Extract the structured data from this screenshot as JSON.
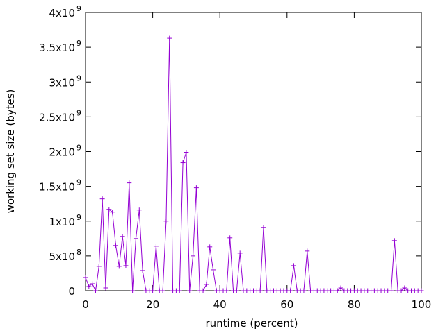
{
  "chart_data": {
    "type": "line",
    "xlabel": "runtime (percent)",
    "ylabel": "working set size (bytes)",
    "xlim": [
      0,
      100
    ],
    "ylim": [
      0,
      4000000000
    ],
    "grid": false,
    "legend": "none",
    "color": "#9400d3",
    "marker": "plus",
    "x_ticks": [
      {
        "value": 0,
        "label": "0"
      },
      {
        "value": 20,
        "label": "20"
      },
      {
        "value": 40,
        "label": "40"
      },
      {
        "value": 60,
        "label": "60"
      },
      {
        "value": 80,
        "label": "80"
      },
      {
        "value": 100,
        "label": "100"
      }
    ],
    "y_ticks": [
      {
        "value": 0,
        "mant": "0",
        "exp": ""
      },
      {
        "value": 500000000,
        "mant": "5x10",
        "exp": "8"
      },
      {
        "value": 1000000000,
        "mant": "1x10",
        "exp": "9"
      },
      {
        "value": 1500000000,
        "mant": "1.5x10",
        "exp": "9"
      },
      {
        "value": 2000000000,
        "mant": "2x10",
        "exp": "9"
      },
      {
        "value": 2500000000,
        "mant": "2.5x10",
        "exp": "9"
      },
      {
        "value": 3000000000,
        "mant": "3x10",
        "exp": "9"
      },
      {
        "value": 3500000000,
        "mant": "3.5x10",
        "exp": "9"
      },
      {
        "value": 4000000000,
        "mant": "4x10",
        "exp": "9"
      }
    ],
    "series": [
      {
        "x": [
          0,
          1,
          2,
          3,
          4,
          5,
          6,
          7,
          8,
          9,
          10,
          11,
          12,
          13,
          14,
          15,
          16,
          17,
          18,
          19,
          20,
          21,
          22,
          23,
          24,
          25,
          26,
          27,
          28,
          29,
          30,
          31,
          32,
          33,
          34,
          35,
          36,
          37,
          38,
          39,
          40,
          41,
          42,
          43,
          44,
          45,
          46,
          47,
          48,
          49,
          50,
          51,
          52,
          53,
          54,
          55,
          56,
          57,
          58,
          59,
          60,
          61,
          62,
          63,
          64,
          65,
          66,
          67,
          68,
          69,
          70,
          71,
          72,
          73,
          74,
          75,
          76,
          77,
          78,
          79,
          80,
          81,
          82,
          83,
          84,
          85,
          86,
          87,
          88,
          89,
          90,
          91,
          92,
          93,
          94,
          95,
          96,
          97,
          98,
          99,
          100
        ],
        "y": [
          190000000,
          60000000,
          100000000,
          0,
          350000000,
          1320000000,
          40000000,
          1170000000,
          1130000000,
          650000000,
          350000000,
          780000000,
          360000000,
          1550000000,
          0,
          750000000,
          1160000000,
          290000000,
          0,
          0,
          0,
          640000000,
          0,
          0,
          1000000000,
          3630000000,
          0,
          0,
          0,
          1840000000,
          1990000000,
          0,
          500000000,
          1480000000,
          0,
          0,
          90000000,
          630000000,
          300000000,
          0,
          0,
          0,
          0,
          760000000,
          0,
          0,
          540000000,
          0,
          0,
          0,
          0,
          0,
          0,
          910000000,
          0,
          0,
          0,
          0,
          0,
          0,
          0,
          0,
          360000000,
          0,
          0,
          0,
          570000000,
          0,
          0,
          0,
          0,
          0,
          0,
          0,
          0,
          0,
          40000000,
          0,
          0,
          0,
          0,
          0,
          0,
          0,
          0,
          0,
          0,
          0,
          0,
          0,
          0,
          0,
          720000000,
          0,
          0,
          40000000,
          0,
          0,
          0,
          0,
          0
        ]
      }
    ]
  }
}
